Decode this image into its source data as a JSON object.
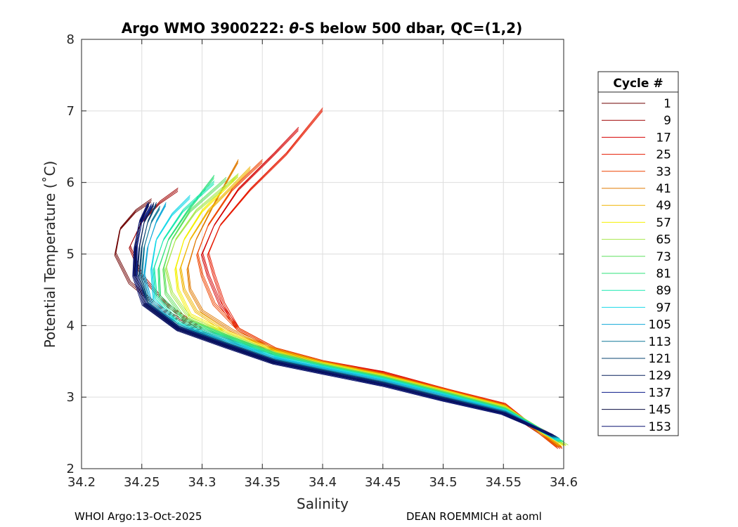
{
  "chart_data": {
    "type": "line",
    "title_prefix": "Argo WMO 3900222: ",
    "title_theta": "θ",
    "title_suffix": "-S below 500 dbar,  QC=(1,2)",
    "xlabel": "Salinity",
    "ylabel": "Potential Temperature (˚C)",
    "xlim": [
      34.2,
      34.6
    ],
    "ylim": [
      2,
      8
    ],
    "x_ticks": [
      "34.2",
      "34.25",
      "34.3",
      "34.35",
      "34.4",
      "34.45",
      "34.5",
      "34.55",
      "34.6"
    ],
    "y_ticks": [
      "2",
      "3",
      "4",
      "5",
      "6",
      "7",
      "8"
    ],
    "grid": true,
    "legend_title": "Cycle #",
    "legend_position": "right",
    "legend_entries": [
      {
        "label": "1",
        "color": "#6e0000"
      },
      {
        "label": "9",
        "color": "#9e0000"
      },
      {
        "label": "17",
        "color": "#d40000"
      },
      {
        "label": "25",
        "color": "#e61a00"
      },
      {
        "label": "33",
        "color": "#ee4400"
      },
      {
        "label": "41",
        "color": "#e07a00"
      },
      {
        "label": "49",
        "color": "#f0b400"
      },
      {
        "label": "57",
        "color": "#f4f000"
      },
      {
        "label": "65",
        "color": "#a6e84a"
      },
      {
        "label": "73",
        "color": "#5ee05e"
      },
      {
        "label": "81",
        "color": "#2ee07a"
      },
      {
        "label": "89",
        "color": "#18e8b0"
      },
      {
        "label": "97",
        "color": "#18d8e8"
      },
      {
        "label": "105",
        "color": "#10a8d8"
      },
      {
        "label": "113",
        "color": "#107898"
      },
      {
        "label": "121",
        "color": "#0a4470"
      },
      {
        "label": "129",
        "color": "#08205c"
      },
      {
        "label": "137",
        "color": "#0a1a8a"
      },
      {
        "label": "145",
        "color": "#060a40"
      },
      {
        "label": "153",
        "color": "#0a1470"
      }
    ],
    "series": [
      {
        "name": "1",
        "color": "#6e0000",
        "points": [
          [
            34.592,
            2.45
          ],
          [
            34.55,
            2.82
          ],
          [
            34.5,
            3.05
          ],
          [
            34.45,
            3.28
          ],
          [
            34.4,
            3.45
          ],
          [
            34.35,
            3.65
          ],
          [
            34.3,
            3.9
          ],
          [
            34.265,
            4.25
          ],
          [
            34.24,
            4.6
          ],
          [
            34.228,
            5.0
          ],
          [
            34.232,
            5.35
          ],
          [
            34.245,
            5.6
          ],
          [
            34.258,
            5.75
          ]
        ]
      },
      {
        "name": "9",
        "color": "#9e0000",
        "points": [
          [
            34.594,
            2.35
          ],
          [
            34.55,
            2.84
          ],
          [
            34.5,
            3.08
          ],
          [
            34.45,
            3.3
          ],
          [
            34.4,
            3.48
          ],
          [
            34.35,
            3.68
          ],
          [
            34.3,
            3.94
          ],
          [
            34.27,
            4.3
          ],
          [
            34.25,
            4.7
          ],
          [
            34.24,
            5.1
          ],
          [
            34.25,
            5.45
          ],
          [
            34.265,
            5.72
          ],
          [
            34.28,
            5.9
          ]
        ]
      },
      {
        "name": "17",
        "color": "#d40000",
        "points": [
          [
            34.596,
            2.3
          ],
          [
            34.55,
            2.9
          ],
          [
            34.5,
            3.12
          ],
          [
            34.45,
            3.35
          ],
          [
            34.4,
            3.5
          ],
          [
            34.36,
            3.68
          ],
          [
            34.33,
            3.95
          ],
          [
            34.315,
            4.3
          ],
          [
            34.305,
            4.7
          ],
          [
            34.3,
            5.0
          ],
          [
            34.31,
            5.4
          ],
          [
            34.33,
            5.9
          ],
          [
            34.36,
            6.4
          ],
          [
            34.38,
            6.75
          ]
        ]
      },
      {
        "name": "25",
        "color": "#e61a00",
        "points": [
          [
            34.597,
            2.28
          ],
          [
            34.55,
            2.91
          ],
          [
            34.5,
            3.12
          ],
          [
            34.45,
            3.34
          ],
          [
            34.4,
            3.5
          ],
          [
            34.36,
            3.68
          ],
          [
            34.33,
            3.95
          ],
          [
            34.318,
            4.3
          ],
          [
            34.31,
            4.7
          ],
          [
            34.305,
            5.0
          ],
          [
            34.315,
            5.4
          ],
          [
            34.34,
            5.9
          ],
          [
            34.37,
            6.4
          ],
          [
            34.4,
            7.02
          ]
        ]
      },
      {
        "name": "33",
        "color": "#ee4400",
        "points": [
          [
            34.596,
            2.3
          ],
          [
            34.55,
            2.9
          ],
          [
            34.5,
            3.12
          ],
          [
            34.45,
            3.33
          ],
          [
            34.4,
            3.5
          ],
          [
            34.36,
            3.68
          ],
          [
            34.33,
            3.95
          ],
          [
            34.31,
            4.3
          ],
          [
            34.3,
            4.7
          ],
          [
            34.296,
            5.0
          ],
          [
            34.305,
            5.4
          ],
          [
            34.325,
            5.9
          ],
          [
            34.35,
            6.3
          ]
        ]
      },
      {
        "name": "41",
        "color": "#e07a00",
        "points": [
          [
            34.597,
            2.3
          ],
          [
            34.55,
            2.89
          ],
          [
            34.5,
            3.1
          ],
          [
            34.45,
            3.32
          ],
          [
            34.4,
            3.49
          ],
          [
            34.36,
            3.67
          ],
          [
            34.325,
            3.93
          ],
          [
            34.3,
            4.2
          ],
          [
            34.29,
            4.5
          ],
          [
            34.288,
            4.8
          ],
          [
            34.295,
            5.2
          ],
          [
            34.31,
            5.7
          ],
          [
            34.33,
            6.3
          ]
        ]
      },
      {
        "name": "49",
        "color": "#f0b400",
        "points": [
          [
            34.598,
            2.32
          ],
          [
            34.55,
            2.88
          ],
          [
            34.5,
            3.1
          ],
          [
            34.45,
            3.31
          ],
          [
            34.4,
            3.48
          ],
          [
            34.36,
            3.66
          ],
          [
            34.32,
            3.92
          ],
          [
            34.295,
            4.2
          ],
          [
            34.285,
            4.5
          ],
          [
            34.282,
            4.8
          ],
          [
            34.29,
            5.2
          ],
          [
            34.305,
            5.6
          ],
          [
            34.34,
            6.2
          ]
        ]
      },
      {
        "name": "57",
        "color": "#f4f000",
        "points": [
          [
            34.6,
            2.32
          ],
          [
            34.55,
            2.87
          ],
          [
            34.5,
            3.09
          ],
          [
            34.45,
            3.3
          ],
          [
            34.4,
            3.47
          ],
          [
            34.36,
            3.64
          ],
          [
            34.32,
            3.9
          ],
          [
            34.29,
            4.15
          ],
          [
            34.28,
            4.5
          ],
          [
            34.278,
            4.8
          ],
          [
            34.285,
            5.2
          ],
          [
            34.3,
            5.6
          ],
          [
            34.33,
            6.1
          ]
        ]
      },
      {
        "name": "65",
        "color": "#a6e84a",
        "points": [
          [
            34.602,
            2.33
          ],
          [
            34.55,
            2.86
          ],
          [
            34.5,
            3.08
          ],
          [
            34.45,
            3.29
          ],
          [
            34.4,
            3.46
          ],
          [
            34.36,
            3.62
          ],
          [
            34.32,
            3.88
          ],
          [
            34.29,
            4.1
          ],
          [
            34.275,
            4.45
          ],
          [
            34.27,
            4.8
          ],
          [
            34.278,
            5.2
          ],
          [
            34.295,
            5.6
          ],
          [
            34.33,
            6.1
          ]
        ]
      },
      {
        "name": "73",
        "color": "#5ee05e",
        "points": [
          [
            34.599,
            2.36
          ],
          [
            34.55,
            2.85
          ],
          [
            34.5,
            3.07
          ],
          [
            34.45,
            3.28
          ],
          [
            34.4,
            3.45
          ],
          [
            34.36,
            3.61
          ],
          [
            34.32,
            3.86
          ],
          [
            34.285,
            4.1
          ],
          [
            34.27,
            4.45
          ],
          [
            34.268,
            4.8
          ],
          [
            34.275,
            5.2
          ],
          [
            34.29,
            5.6
          ],
          [
            34.32,
            6.05
          ]
        ]
      },
      {
        "name": "81",
        "color": "#2ee07a",
        "points": [
          [
            34.598,
            2.38
          ],
          [
            34.55,
            2.84
          ],
          [
            34.5,
            3.06
          ],
          [
            34.45,
            3.27
          ],
          [
            34.4,
            3.44
          ],
          [
            34.36,
            3.6
          ],
          [
            34.32,
            3.85
          ],
          [
            34.285,
            4.08
          ],
          [
            34.265,
            4.4
          ],
          [
            34.264,
            4.8
          ],
          [
            34.272,
            5.2
          ],
          [
            34.288,
            5.6
          ],
          [
            34.31,
            6.08
          ]
        ]
      },
      {
        "name": "89",
        "color": "#18e8b0",
        "points": [
          [
            34.597,
            2.38
          ],
          [
            34.55,
            2.83
          ],
          [
            34.5,
            3.05
          ],
          [
            34.45,
            3.26
          ],
          [
            34.4,
            3.43
          ],
          [
            34.36,
            3.58
          ],
          [
            34.32,
            3.83
          ],
          [
            34.28,
            4.05
          ],
          [
            34.262,
            4.4
          ],
          [
            34.26,
            4.8
          ],
          [
            34.268,
            5.2
          ],
          [
            34.284,
            5.6
          ],
          [
            34.31,
            6.0
          ]
        ]
      },
      {
        "name": "97",
        "color": "#18d8e8",
        "points": [
          [
            34.596,
            2.4
          ],
          [
            34.55,
            2.82
          ],
          [
            34.5,
            3.04
          ],
          [
            34.45,
            3.25
          ],
          [
            34.4,
            3.42
          ],
          [
            34.36,
            3.56
          ],
          [
            34.32,
            3.8
          ],
          [
            34.28,
            4.02
          ],
          [
            34.26,
            4.35
          ],
          [
            34.258,
            4.8
          ],
          [
            34.262,
            5.2
          ],
          [
            34.275,
            5.55
          ],
          [
            34.29,
            5.8
          ]
        ]
      },
      {
        "name": "105",
        "color": "#10a8d8",
        "points": [
          [
            34.595,
            2.42
          ],
          [
            34.55,
            2.81
          ],
          [
            34.5,
            3.02
          ],
          [
            34.45,
            3.23
          ],
          [
            34.4,
            3.4
          ],
          [
            34.36,
            3.54
          ],
          [
            34.32,
            3.77
          ],
          [
            34.28,
            4.0
          ],
          [
            34.258,
            4.3
          ],
          [
            34.252,
            4.7
          ],
          [
            34.255,
            5.1
          ],
          [
            34.262,
            5.45
          ],
          [
            34.27,
            5.7
          ]
        ]
      },
      {
        "name": "113",
        "color": "#107898",
        "points": [
          [
            34.594,
            2.43
          ],
          [
            34.55,
            2.8
          ],
          [
            34.5,
            3.0
          ],
          [
            34.45,
            3.21
          ],
          [
            34.4,
            3.38
          ],
          [
            34.36,
            3.52
          ],
          [
            34.32,
            3.75
          ],
          [
            34.28,
            4.0
          ],
          [
            34.256,
            4.3
          ],
          [
            34.25,
            4.7
          ],
          [
            34.252,
            5.1
          ],
          [
            34.258,
            5.45
          ],
          [
            34.265,
            5.65
          ]
        ]
      },
      {
        "name": "121",
        "color": "#0a4470",
        "points": [
          [
            34.593,
            2.44
          ],
          [
            34.55,
            2.79
          ],
          [
            34.5,
            2.99
          ],
          [
            34.45,
            3.2
          ],
          [
            34.4,
            3.37
          ],
          [
            34.36,
            3.51
          ],
          [
            34.32,
            3.74
          ],
          [
            34.28,
            3.98
          ],
          [
            34.255,
            4.3
          ],
          [
            34.248,
            4.7
          ],
          [
            34.25,
            5.1
          ],
          [
            34.255,
            5.45
          ],
          [
            34.262,
            5.7
          ]
        ]
      },
      {
        "name": "129",
        "color": "#08205c",
        "points": [
          [
            34.592,
            2.45
          ],
          [
            34.55,
            2.78
          ],
          [
            34.5,
            2.98
          ],
          [
            34.45,
            3.19
          ],
          [
            34.4,
            3.36
          ],
          [
            34.36,
            3.5
          ],
          [
            34.32,
            3.73
          ],
          [
            34.28,
            3.97
          ],
          [
            34.254,
            4.3
          ],
          [
            34.246,
            4.7
          ],
          [
            34.248,
            5.1
          ],
          [
            34.252,
            5.45
          ],
          [
            34.26,
            5.7
          ]
        ]
      },
      {
        "name": "137",
        "color": "#0a1a8a",
        "points": [
          [
            34.591,
            2.46
          ],
          [
            34.55,
            2.78
          ],
          [
            34.5,
            2.97
          ],
          [
            34.45,
            3.18
          ],
          [
            34.4,
            3.35
          ],
          [
            34.36,
            3.49
          ],
          [
            34.32,
            3.72
          ],
          [
            34.28,
            3.96
          ],
          [
            34.253,
            4.3
          ],
          [
            34.245,
            4.7
          ],
          [
            34.246,
            5.1
          ],
          [
            34.25,
            5.45
          ],
          [
            34.258,
            5.68
          ]
        ]
      },
      {
        "name": "145",
        "color": "#060a40",
        "points": [
          [
            34.59,
            2.47
          ],
          [
            34.55,
            2.77
          ],
          [
            34.5,
            2.96
          ],
          [
            34.45,
            3.17
          ],
          [
            34.4,
            3.34
          ],
          [
            34.36,
            3.48
          ],
          [
            34.32,
            3.71
          ],
          [
            34.28,
            3.95
          ],
          [
            34.252,
            4.3
          ],
          [
            34.244,
            4.7
          ],
          [
            34.245,
            5.1
          ],
          [
            34.249,
            5.45
          ],
          [
            34.256,
            5.7
          ]
        ]
      },
      {
        "name": "153",
        "color": "#0a1470",
        "points": [
          [
            34.589,
            2.48
          ],
          [
            34.55,
            2.76
          ],
          [
            34.5,
            2.95
          ],
          [
            34.45,
            3.16
          ],
          [
            34.4,
            3.33
          ],
          [
            34.36,
            3.47
          ],
          [
            34.32,
            3.7
          ],
          [
            34.28,
            3.94
          ],
          [
            34.251,
            4.3
          ],
          [
            34.243,
            4.7
          ],
          [
            34.244,
            5.1
          ],
          [
            34.248,
            5.45
          ],
          [
            34.255,
            5.7
          ]
        ]
      }
    ]
  },
  "footer": {
    "left": "WHOI Argo:13-Oct-2025",
    "right": "DEAN ROEMMICH at aoml"
  }
}
